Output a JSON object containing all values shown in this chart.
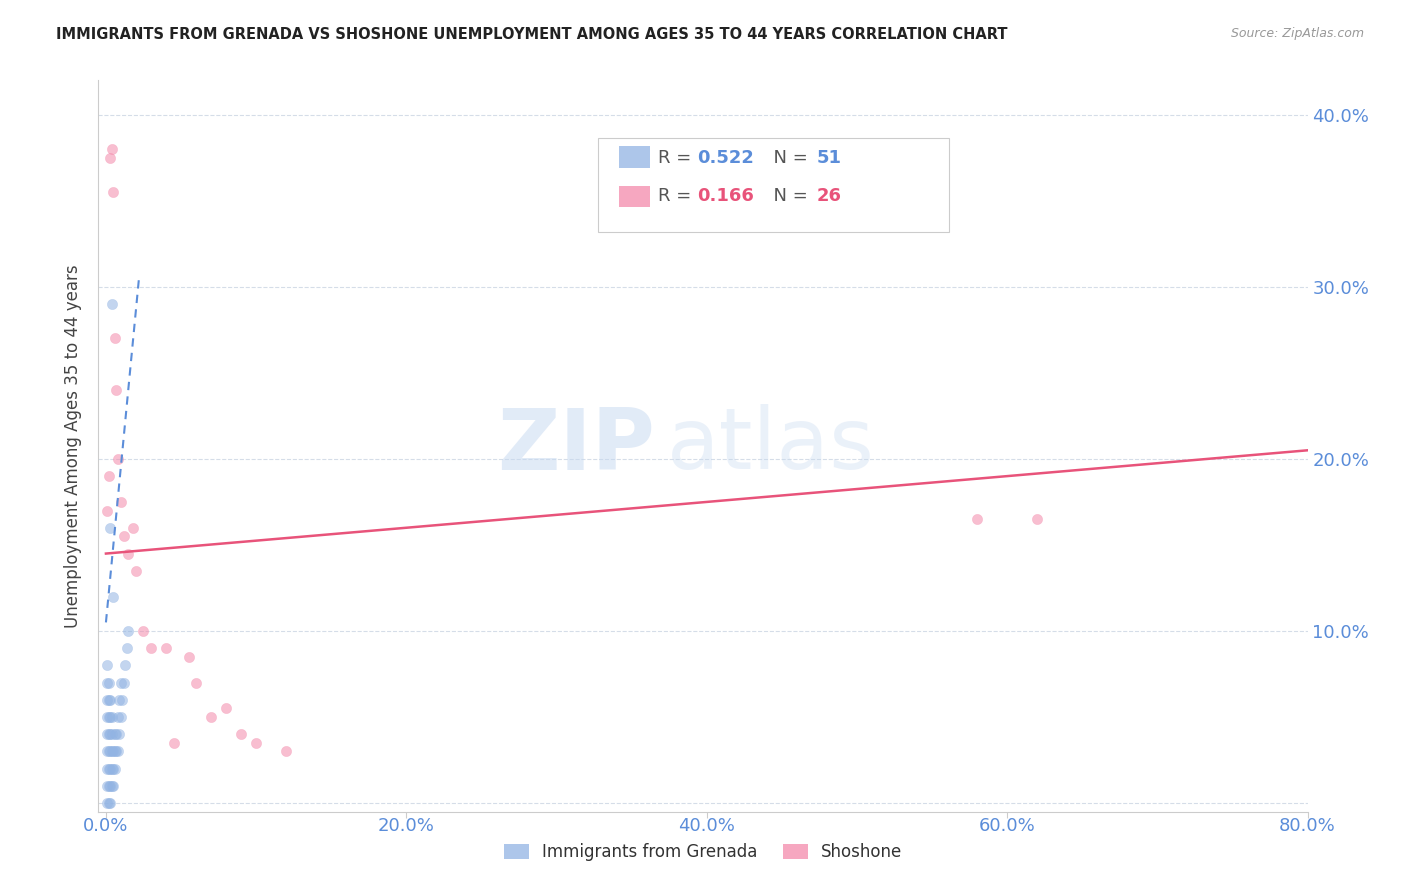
{
  "title": "IMMIGRANTS FROM GRENADA VS SHOSHONE UNEMPLOYMENT AMONG AGES 35 TO 44 YEARS CORRELATION CHART",
  "source": "Source: ZipAtlas.com",
  "ylabel": "Unemployment Among Ages 35 to 44 years",
  "R1": "0.522",
  "N1": "51",
  "R2": "0.166",
  "N2": "26",
  "color1": "#92b4e3",
  "color2": "#f48aab",
  "trendline1_color": "#5b8dd9",
  "trendline2_color": "#e8537a",
  "watermark_zip": "ZIP",
  "watermark_atlas": "atlas",
  "background_color": "#ffffff",
  "grid_color": "#d5dde8",
  "title_color": "#222222",
  "tick_color": "#5b8dd9",
  "ylabel_color": "#444444",
  "source_color": "#999999",
  "legend1_label": "Immigrants from Grenada",
  "legend2_label": "Shoshone",
  "xlim": [
    -0.005,
    0.8
  ],
  "ylim": [
    -0.005,
    0.42
  ],
  "xtick_positions": [
    0.0,
    0.2,
    0.4,
    0.6,
    0.8
  ],
  "xtick_labels": [
    "0.0%",
    "20.0%",
    "40.0%",
    "60.0%",
    "80.0%"
  ],
  "ytick_positions": [
    0.0,
    0.1,
    0.2,
    0.3,
    0.4
  ],
  "ytick_labels": [
    "",
    "10.0%",
    "20.0%",
    "30.0%",
    "40.0%"
  ],
  "scatter1_x": [
    0.001,
    0.001,
    0.001,
    0.001,
    0.001,
    0.001,
    0.001,
    0.001,
    0.001,
    0.002,
    0.002,
    0.002,
    0.002,
    0.002,
    0.002,
    0.002,
    0.002,
    0.003,
    0.003,
    0.003,
    0.003,
    0.003,
    0.003,
    0.003,
    0.004,
    0.004,
    0.004,
    0.004,
    0.004,
    0.005,
    0.005,
    0.005,
    0.006,
    0.006,
    0.006,
    0.007,
    0.007,
    0.008,
    0.008,
    0.009,
    0.009,
    0.01,
    0.01,
    0.011,
    0.012,
    0.013,
    0.014,
    0.015,
    0.003,
    0.004,
    0.005
  ],
  "scatter1_y": [
    0.0,
    0.01,
    0.02,
    0.03,
    0.04,
    0.05,
    0.06,
    0.07,
    0.08,
    0.0,
    0.01,
    0.02,
    0.03,
    0.04,
    0.05,
    0.06,
    0.07,
    0.0,
    0.01,
    0.02,
    0.03,
    0.04,
    0.05,
    0.06,
    0.01,
    0.02,
    0.03,
    0.04,
    0.05,
    0.01,
    0.02,
    0.03,
    0.02,
    0.03,
    0.04,
    0.03,
    0.04,
    0.03,
    0.05,
    0.04,
    0.06,
    0.05,
    0.07,
    0.06,
    0.07,
    0.08,
    0.09,
    0.1,
    0.16,
    0.29,
    0.12
  ],
  "scatter2_x": [
    0.001,
    0.002,
    0.003,
    0.004,
    0.005,
    0.006,
    0.007,
    0.008,
    0.01,
    0.012,
    0.015,
    0.018,
    0.02,
    0.025,
    0.03,
    0.04,
    0.045,
    0.055,
    0.06,
    0.07,
    0.08,
    0.09,
    0.1,
    0.12,
    0.58,
    0.62
  ],
  "scatter2_y": [
    0.17,
    0.19,
    0.375,
    0.38,
    0.355,
    0.27,
    0.24,
    0.2,
    0.175,
    0.155,
    0.145,
    0.16,
    0.135,
    0.1,
    0.09,
    0.09,
    0.035,
    0.085,
    0.07,
    0.05,
    0.055,
    0.04,
    0.035,
    0.03,
    0.165,
    0.165
  ],
  "trendline1_x": [
    0.0,
    0.022
  ],
  "trendline1_y": [
    0.105,
    0.305
  ],
  "trendline2_x": [
    0.0,
    0.8
  ],
  "trendline2_y": [
    0.145,
    0.205
  ],
  "marker_size": 55,
  "marker_alpha": 0.55
}
